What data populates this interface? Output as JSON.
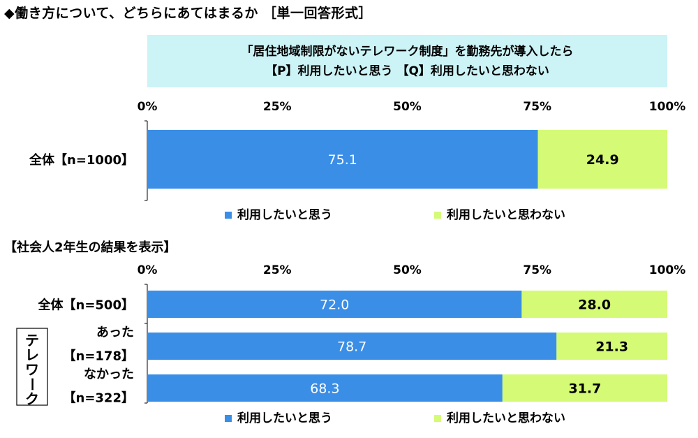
{
  "title": "◆働き方について、どちらにあてはまるか ［単一回答形式］",
  "question": {
    "line1": "「居住地域制限がないテレワーク制度」を勤務先が導入したら",
    "line2": "【P】利用したいと思う 【Q】利用したいと思わない"
  },
  "subtitle": "【社会人2年生の結果を表示】",
  "colors": {
    "p": "#3a8ee6",
    "q": "#d4fa76"
  },
  "chart_data": [
    {
      "type": "bar",
      "orientation": "horizontal",
      "stacked": true,
      "xlim": [
        0,
        100
      ],
      "ticks": [
        "0%",
        "25%",
        "50%",
        "75%",
        "100%"
      ],
      "categories": [
        "全体【n=1000】"
      ],
      "series": [
        {
          "name": "利用したいと思う",
          "values": [
            75.1
          ],
          "labels": [
            "75.1"
          ]
        },
        {
          "name": "利用したいと思わない",
          "values": [
            24.9
          ],
          "labels": [
            "24.9"
          ]
        }
      ],
      "legend": "bottom"
    },
    {
      "type": "bar",
      "orientation": "horizontal",
      "stacked": true,
      "xlim": [
        0,
        100
      ],
      "ticks": [
        "0%",
        "25%",
        "50%",
        "75%",
        "100%"
      ],
      "group_label": "テレワーク",
      "categories": [
        "全体【n=500】",
        "あった【n=178】",
        "なかった【n=322】"
      ],
      "category_lines": [
        [
          "全体【n=500】"
        ],
        [
          "あった",
          "【n=178】"
        ],
        [
          "なかった",
          "【n=322】"
        ]
      ],
      "series": [
        {
          "name": "利用したいと思う",
          "values": [
            72.0,
            78.7,
            68.3
          ],
          "labels": [
            "72.0",
            "78.7",
            "68.3"
          ]
        },
        {
          "name": "利用したいと思わない",
          "values": [
            28.0,
            21.3,
            31.7
          ],
          "labels": [
            "28.0",
            "21.3",
            "31.7"
          ]
        }
      ],
      "legend": "bottom"
    }
  ]
}
